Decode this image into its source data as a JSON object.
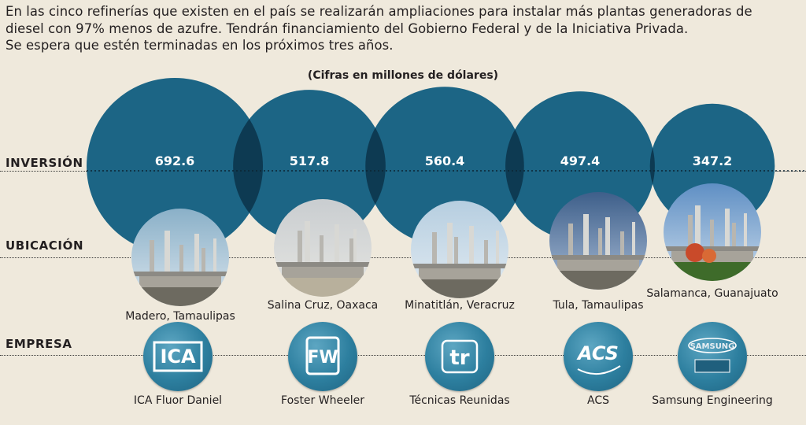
{
  "intro": {
    "line1": "En las cinco refinerías que existen en el país se realizarán ampliaciones para instalar más plantas generadoras de",
    "line2": "diesel con 97% menos de azufre. Tendrán financiamiento del Gobierno Federal y de la Iniciativa Privada.",
    "line3": "Se espera que estén terminadas en los próximos tres años."
  },
  "rows": {
    "investment": "INVERSIÓN",
    "location": "UBICACIÓN",
    "company": "EMPRESA"
  },
  "colors": {
    "bubble": "#1c6585",
    "overlap": "#0d3a52",
    "value_text": "#ffffff",
    "logo": "#2d7f9f"
  },
  "chart_data": {
    "type": "bubble",
    "subtitle": "(Cifras en millones de dólares)",
    "values": [
      692.6,
      517.8,
      560.4,
      497.4,
      347.2
    ],
    "value_labels": [
      "692.6",
      "517.8",
      "560.4",
      "497.4",
      "347.2"
    ],
    "locations": [
      "Madero, Tamaulipas",
      "Salina Cruz, Oaxaca",
      "Minatitlán, Veracruz",
      "Tula, Tamaulipas",
      "Salamanca, Guanajuato"
    ],
    "companies": [
      "ICA Fluor Daniel",
      "Foster Wheeler",
      "Técnicas Reunidas",
      "ACS",
      "Samsung Engineering"
    ]
  },
  "logos": [
    {
      "icon": "ica-logo-icon",
      "text": "ICA"
    },
    {
      "icon": "fw-logo-icon",
      "text": "FW"
    },
    {
      "icon": "tr-logo-icon",
      "text": "tr"
    },
    {
      "icon": "acs-logo-icon",
      "text": "ACS"
    },
    {
      "icon": "samsung-logo-icon",
      "text": "SAMSUNG"
    }
  ]
}
